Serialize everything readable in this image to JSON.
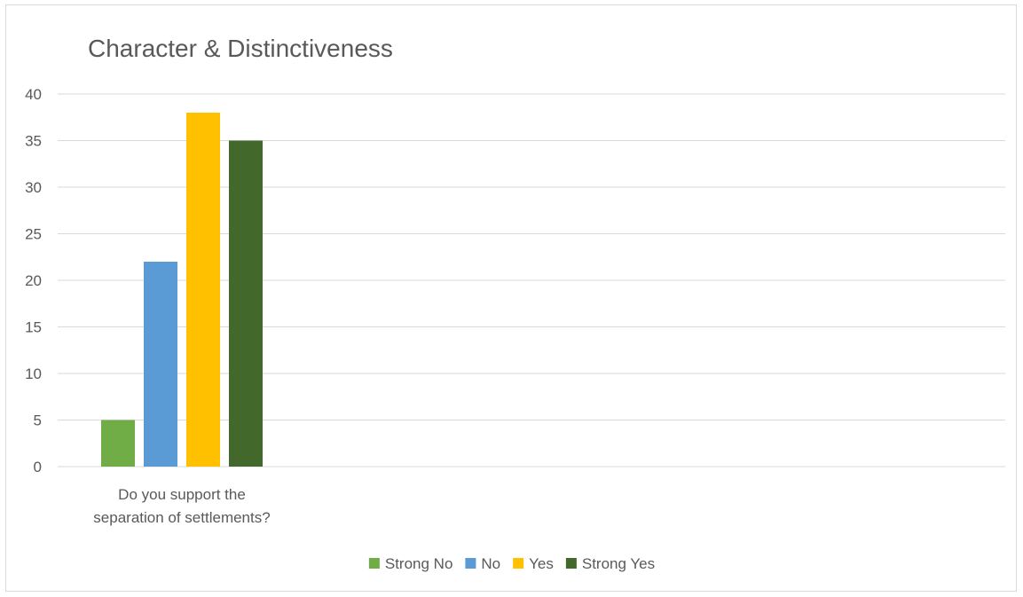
{
  "chart_data": {
    "type": "bar",
    "title": "Character & Distinctiveness",
    "categories": [
      "Do you support the separation of settlements?"
    ],
    "category_lines": [
      [
        "Do you support the",
        "separation of settlements?"
      ]
    ],
    "series": [
      {
        "name": "Strong No",
        "values": [
          5
        ],
        "color": "#70ad47"
      },
      {
        "name": "No",
        "values": [
          22
        ],
        "color": "#5b9bd5"
      },
      {
        "name": "Yes",
        "values": [
          38
        ],
        "color": "#ffc000"
      },
      {
        "name": "Strong Yes",
        "values": [
          35
        ],
        "color": "#43682b"
      }
    ],
    "ylim": [
      0,
      40
    ],
    "yticks": [
      0,
      5,
      10,
      15,
      20,
      25,
      30,
      35,
      40
    ],
    "grid": true,
    "legend_position": "bottom"
  }
}
